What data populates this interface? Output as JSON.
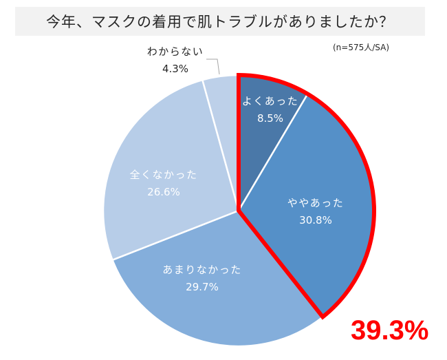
{
  "title": "今年、マスクの着用で肌トラブルがありましたか？",
  "note": "(n=575人/SA)",
  "highlight": {
    "value": "39.3%",
    "color": "#ff0000",
    "covers": [
      "よくあった",
      "ややあった"
    ]
  },
  "chart_data": {
    "type": "pie",
    "title": "今年、マスクの着用で肌トラブルがありましたか？",
    "subtitle": "(n=575人/SA)",
    "start_angle_deg": 0,
    "direction": "clockwise",
    "categories": [
      "よくあった",
      "ややあった",
      "あまりなかった",
      "全くなかった",
      "わからない"
    ],
    "values": [
      8.5,
      30.8,
      29.7,
      26.6,
      4.3
    ],
    "labels": [
      "8.5%",
      "30.8%",
      "29.7%",
      "26.6%",
      "4.3%"
    ],
    "colors": [
      "#4a78a8",
      "#5590c8",
      "#84aedb",
      "#b7cde8",
      "#bdd0e9"
    ],
    "annotations": [
      {
        "text": "39.3%",
        "note": "sum of よくあった + ややあった, outlined in red"
      }
    ],
    "legend": "none (data labels on slices)"
  },
  "slices": [
    {
      "label": "よくあった",
      "value": "8.5%"
    },
    {
      "label": "ややあった",
      "value": "30.8%"
    },
    {
      "label": "あまりなかった",
      "value": "29.7%"
    },
    {
      "label": "全くなかった",
      "value": "26.6%"
    },
    {
      "label": "わからない",
      "value": "4.3%"
    }
  ]
}
